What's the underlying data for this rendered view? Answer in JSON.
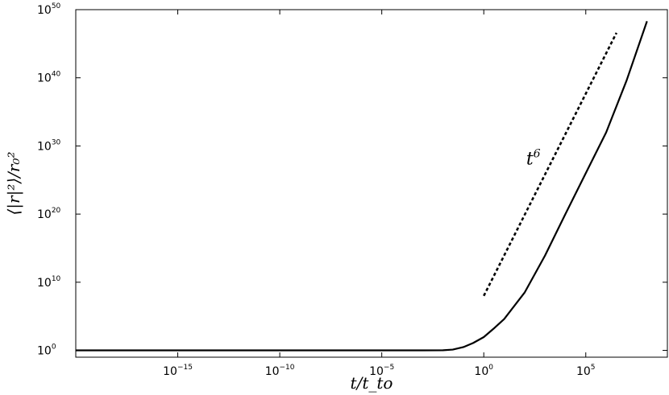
{
  "chart_data": {
    "type": "line",
    "x_scale": "log",
    "y_scale": "log",
    "xlabel": "t/t_to",
    "ylabel": "⟨|r|²⟩/r₀²",
    "xlim": [
      1e-20,
      1000000000.0
    ],
    "ylim": [
      0.1,
      1e+50
    ],
    "grid": false,
    "xticks": [
      {
        "value": 1e-15,
        "base": "10",
        "exp": "−15"
      },
      {
        "value": 1e-10,
        "base": "10",
        "exp": "−10"
      },
      {
        "value": 1e-05,
        "base": "10",
        "exp": "−5"
      },
      {
        "value": 1,
        "base": "10",
        "exp": "0"
      },
      {
        "value": 100000.0,
        "base": "10",
        "exp": "5"
      }
    ],
    "yticks": [
      {
        "value": 1,
        "base": "10",
        "exp": "0"
      },
      {
        "value": 10000000000.0,
        "base": "10",
        "exp": "10"
      },
      {
        "value": 1e+20,
        "base": "10",
        "exp": "20"
      },
      {
        "value": 1e+30,
        "base": "10",
        "exp": "30"
      },
      {
        "value": 1e+40,
        "base": "10",
        "exp": "40"
      },
      {
        "value": 1e+50,
        "base": "10",
        "exp": "50"
      }
    ],
    "series": [
      {
        "style": "solid",
        "x": [
          1e-20,
          1e-10,
          0.001,
          0.01,
          0.03,
          0.1,
          0.3,
          1,
          3,
          10,
          100,
          1000.0,
          10000.0,
          100000.0,
          1000000.0,
          10000000.0,
          100000000.0
        ],
        "y": [
          1,
          1,
          1,
          1.05,
          1.3,
          3,
          12,
          90,
          1500,
          40000.0,
          300000000.0,
          80000000000000.0,
          1e+20,
          1e+26,
          1e+32,
          4e+39,
          2e+48
        ]
      },
      {
        "style": "dashed",
        "x": [
          1,
          3200000.0
        ],
        "y": [
          100000000.0,
          4e+46
        ]
      }
    ],
    "annotations": [
      {
        "base": "t",
        "exp": "6",
        "x": 120,
        "y": 2e+27
      }
    ]
  }
}
